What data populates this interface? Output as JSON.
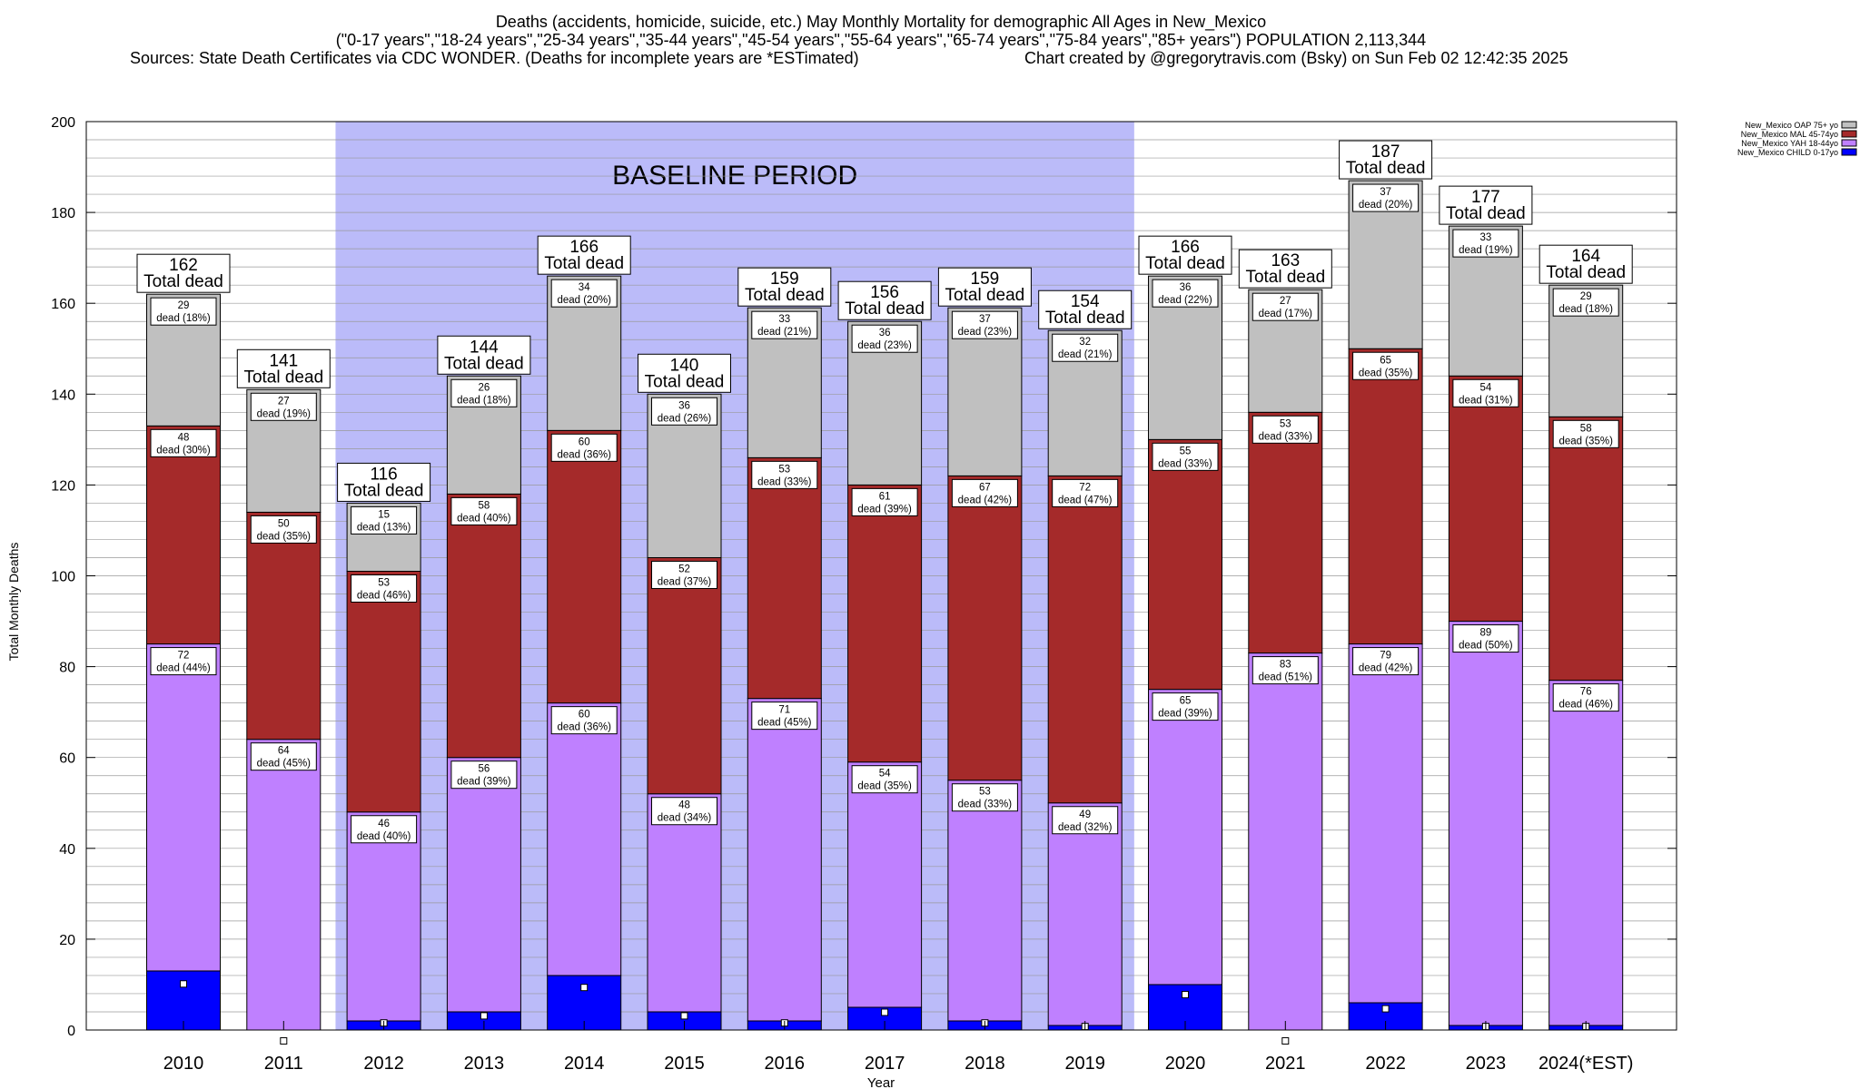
{
  "chart_data": {
    "type": "bar",
    "stacked": true,
    "title_lines": [
      "Deaths (accidents, homicide, suicide, etc.) May Monthly Mortality for demographic All Ages in New_Mexico",
      "(\"0-17 years\",\"18-24 years\",\"25-34 years\",\"35-44 years\",\"45-54 years\",\"55-64 years\",\"65-74 years\",\"75-84 years\",\"85+ years\") POPULATION 2,113,344",
      "Sources: State Death Certificates via CDC WONDER. (Deaths for incomplete years are *ESTimated)",
      "Chart created by @gregorytravis.com (Bsky) on Sun Feb 02 12:42:35 2025"
    ],
    "xlabel": "Year",
    "ylabel": "Total Monthly Deaths",
    "ylim": [
      0,
      200
    ],
    "y_ticks": [
      0,
      20,
      40,
      60,
      80,
      100,
      120,
      140,
      160,
      180,
      200
    ],
    "grid": true,
    "legend_position": "top-right",
    "baseline_label": "BASELINE PERIOD",
    "baseline_range": [
      "2012",
      "2019"
    ],
    "total_suffix": "Total dead",
    "segment_suffix": "dead",
    "categories": [
      "2010",
      "2011",
      "2012",
      "2013",
      "2014",
      "2015",
      "2016",
      "2017",
      "2018",
      "2019",
      "2020",
      "2021",
      "2022",
      "2023",
      "2024(*EST)"
    ],
    "totals": [
      162,
      141,
      116,
      144,
      166,
      140,
      159,
      156,
      159,
      154,
      166,
      163,
      187,
      177,
      164
    ],
    "series": [
      {
        "name": "New_Mexico CHILD 0-17yo",
        "color": "#0000ff",
        "values": [
          13,
          0,
          2,
          4,
          12,
          4,
          2,
          5,
          2,
          1,
          10,
          0,
          6,
          1,
          1
        ]
      },
      {
        "name": "New_Mexico YAH 18-44yo",
        "color": "#bf80ff",
        "values": [
          72,
          64,
          46,
          56,
          60,
          48,
          71,
          54,
          53,
          49,
          65,
          83,
          79,
          89,
          76
        ],
        "labels": [
          "72",
          "64",
          "46",
          "56",
          "60",
          "48",
          "71",
          "54",
          "53",
          "49",
          "65",
          "83",
          "79",
          "89",
          "76"
        ],
        "pcts": [
          "44%",
          "45%",
          "40%",
          "39%",
          "36%",
          "34%",
          "45%",
          "35%",
          "33%",
          "32%",
          "39%",
          "51%",
          "42%",
          "50%",
          "46%"
        ]
      },
      {
        "name": "New_Mexico MAL 45-74yo",
        "color": "#a52a2a",
        "values": [
          48,
          50,
          53,
          58,
          60,
          52,
          53,
          61,
          67,
          72,
          55,
          53,
          65,
          54,
          58
        ],
        "labels": [
          "48",
          "50",
          "53",
          "58",
          "60",
          "52",
          "53",
          "61",
          "67",
          "72",
          "55",
          "53",
          "65",
          "54",
          "58"
        ],
        "pcts": [
          "30%",
          "35%",
          "46%",
          "40%",
          "36%",
          "37%",
          "33%",
          "39%",
          "42%",
          "47%",
          "33%",
          "33%",
          "35%",
          "31%",
          "35%"
        ]
      },
      {
        "name": "New_Mexico OAP 75+ yo",
        "color": "#c0c0c0",
        "values": [
          29,
          27,
          15,
          26,
          34,
          36,
          33,
          36,
          37,
          32,
          36,
          27,
          37,
          33,
          29
        ],
        "labels": [
          "29",
          "27",
          "15",
          "26",
          "34",
          "36",
          "33",
          "36",
          "37",
          "32",
          "36",
          "27",
          "37",
          "33",
          "29"
        ],
        "pcts": [
          "18%",
          "19%",
          "13%",
          "18%",
          "20%",
          "26%",
          "21%",
          "23%",
          "23%",
          "21%",
          "22%",
          "17%",
          "20%",
          "19%",
          "18%"
        ]
      }
    ],
    "legend_order": [
      "New_Mexico OAP 75+ yo",
      "New_Mexico MAL 45-74yo",
      "New_Mexico YAH 18-44yo",
      "New_Mexico CHILD 0-17yo"
    ]
  }
}
